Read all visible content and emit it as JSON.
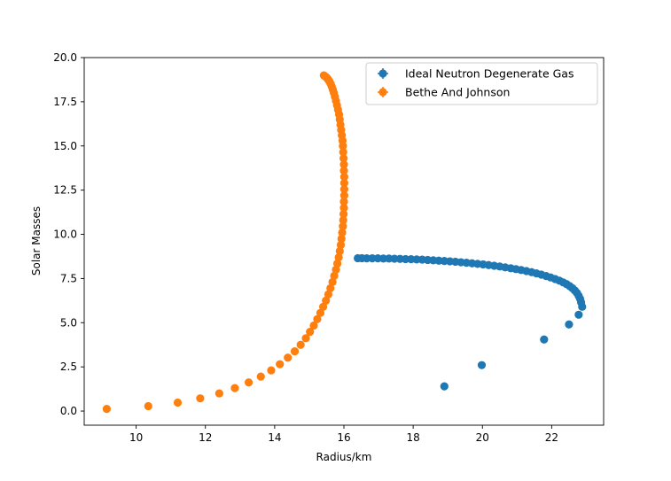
{
  "chart_data": {
    "type": "scatter",
    "title": "",
    "xlabel": "Radius/km",
    "ylabel": "Solar Masses",
    "xlim": [
      8.5,
      23.5
    ],
    "ylim": [
      -0.8,
      20.0
    ],
    "xticks": [
      10,
      12,
      14,
      16,
      18,
      20,
      22
    ],
    "xtick_labels": [
      "10",
      "12",
      "14",
      "16",
      "18",
      "20",
      "22"
    ],
    "yticks": [
      0.0,
      2.5,
      5.0,
      7.5,
      10.0,
      12.5,
      15.0,
      17.5,
      20.0
    ],
    "ytick_labels": [
      "0.0",
      "2.5",
      "5.0",
      "7.5",
      "10.0",
      "12.5",
      "15.0",
      "17.5",
      "20.0"
    ],
    "grid": false,
    "legend_position": "top-right",
    "series": [
      {
        "name": "Ideal Neutron Degenerate Gas",
        "color": "#1f77b4",
        "x": [
          18.9,
          19.98,
          21.78,
          22.5,
          22.78,
          22.88,
          22.85,
          22.82,
          22.78,
          22.73,
          22.67,
          22.6,
          22.52,
          22.43,
          22.33,
          22.22,
          22.1,
          21.97,
          21.84,
          21.7,
          21.56,
          21.42,
          21.27,
          21.12,
          20.97,
          20.82,
          20.66,
          20.5,
          20.34,
          20.18,
          20.02,
          19.86,
          19.7,
          19.54,
          19.38,
          19.22,
          19.06,
          18.9,
          18.74,
          18.58,
          18.42,
          18.26,
          18.1,
          17.94,
          17.78,
          17.62,
          17.46,
          17.3,
          17.14,
          16.98,
          16.82,
          16.66,
          16.52,
          16.4
        ],
        "y": [
          1.4,
          2.6,
          4.05,
          4.9,
          5.45,
          5.9,
          6.15,
          6.35,
          6.52,
          6.68,
          6.82,
          6.95,
          7.07,
          7.18,
          7.28,
          7.38,
          7.47,
          7.56,
          7.64,
          7.72,
          7.79,
          7.86,
          7.92,
          7.98,
          8.03,
          8.08,
          8.13,
          8.18,
          8.22,
          8.26,
          8.3,
          8.33,
          8.36,
          8.39,
          8.42,
          8.45,
          8.47,
          8.49,
          8.51,
          8.53,
          8.55,
          8.57,
          8.58,
          8.59,
          8.6,
          8.61,
          8.62,
          8.63,
          8.63,
          8.64,
          8.64,
          8.64,
          8.65,
          8.65
        ]
      },
      {
        "name": "Bethe And Johnson",
        "color": "#ff7f0e",
        "x": [
          9.15,
          10.35,
          11.2,
          11.85,
          12.4,
          12.85,
          13.25,
          13.6,
          13.9,
          14.15,
          14.38,
          14.58,
          14.75,
          14.9,
          15.02,
          15.13,
          15.23,
          15.32,
          15.4,
          15.48,
          15.55,
          15.61,
          15.67,
          15.72,
          15.77,
          15.81,
          15.85,
          15.88,
          15.91,
          15.93,
          15.95,
          15.97,
          15.98,
          15.99,
          16.0,
          16.0,
          16.01,
          16.01,
          16.01,
          16.01,
          16.0,
          16.0,
          15.99,
          15.98,
          15.97,
          15.96,
          15.94,
          15.92,
          15.9,
          15.88,
          15.86,
          15.83,
          15.8,
          15.77,
          15.74,
          15.71,
          15.68,
          15.65,
          15.62,
          15.59,
          15.56,
          15.53,
          15.5,
          15.47,
          15.44,
          15.42
        ],
        "y": [
          0.12,
          0.28,
          0.48,
          0.72,
          1.0,
          1.3,
          1.62,
          1.95,
          2.3,
          2.65,
          3.02,
          3.38,
          3.75,
          4.12,
          4.48,
          4.84,
          5.2,
          5.55,
          5.9,
          6.25,
          6.6,
          6.95,
          7.3,
          7.65,
          8.0,
          8.35,
          8.7,
          9.05,
          9.4,
          9.75,
          10.1,
          10.45,
          10.8,
          11.15,
          11.5,
          11.85,
          12.2,
          12.55,
          12.9,
          13.25,
          13.6,
          13.95,
          14.3,
          14.65,
          15.0,
          15.3,
          15.6,
          15.9,
          16.2,
          16.5,
          16.78,
          17.05,
          17.3,
          17.55,
          17.78,
          18.0,
          18.18,
          18.35,
          18.5,
          18.62,
          18.72,
          18.8,
          18.87,
          18.92,
          18.96,
          18.99
        ]
      }
    ]
  }
}
